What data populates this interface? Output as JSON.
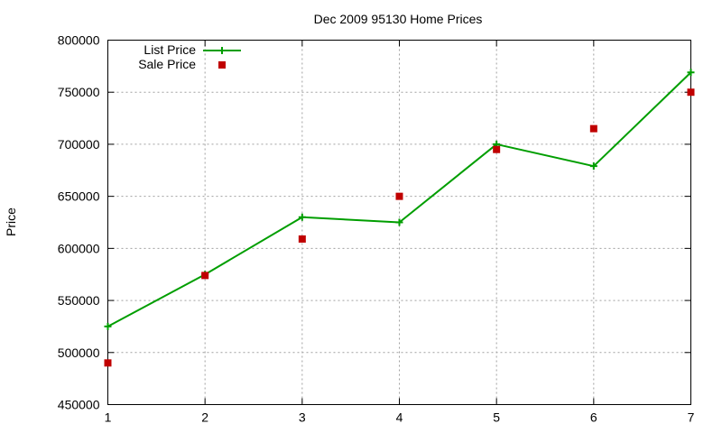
{
  "chart_data": {
    "type": "line",
    "title": "Dec 2009 95130 Home Prices",
    "xlabel": "",
    "ylabel": "Price",
    "xlim": [
      1,
      7
    ],
    "ylim": [
      450000,
      800000
    ],
    "x_ticks": [
      1,
      2,
      3,
      4,
      5,
      6,
      7
    ],
    "y_ticks": [
      450000,
      500000,
      550000,
      600000,
      650000,
      700000,
      750000,
      800000
    ],
    "grid": true,
    "legend_position": "top-left",
    "x": [
      1,
      2,
      3,
      4,
      5,
      6,
      7
    ],
    "series": [
      {
        "name": "List Price",
        "style": "linespoints",
        "marker": "plus",
        "color": "#009e00",
        "values": [
          525000,
          575000,
          630000,
          625000,
          700000,
          679000,
          769000
        ]
      },
      {
        "name": "Sale Price",
        "style": "points",
        "marker": "square",
        "color": "#c00000",
        "values": [
          490000,
          574000,
          609000,
          650000,
          695000,
          715000,
          750000
        ]
      }
    ]
  }
}
